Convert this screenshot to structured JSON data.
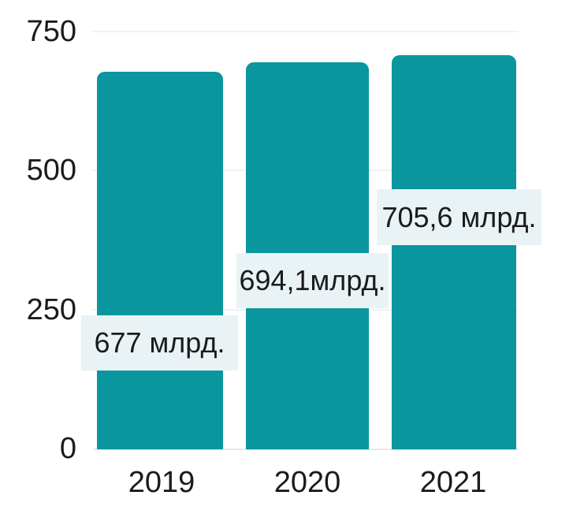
{
  "chart_data": {
    "type": "bar",
    "categories": [
      "2019",
      "2020",
      "2021"
    ],
    "values": [
      677,
      694.1,
      705.6
    ],
    "value_labels": [
      "677 млрд.",
      "694,1млрд.",
      "705,6 млрд."
    ],
    "unit": "млрд.",
    "title": "",
    "xlabel": "",
    "ylabel": "",
    "ylim": [
      0,
      750
    ],
    "yticks": [
      0,
      250,
      500,
      750
    ],
    "ytick_labels": [
      "0",
      "250",
      "500",
      "750"
    ],
    "grid": true,
    "legend_position": "none",
    "bar_color": "#0a969e",
    "label_background": "#e9f2f5",
    "text_color": "#1b1b1b",
    "gridline_color": "#f1f1f1",
    "baseline_color": "#e7e7e7",
    "background": "#ffffff"
  }
}
